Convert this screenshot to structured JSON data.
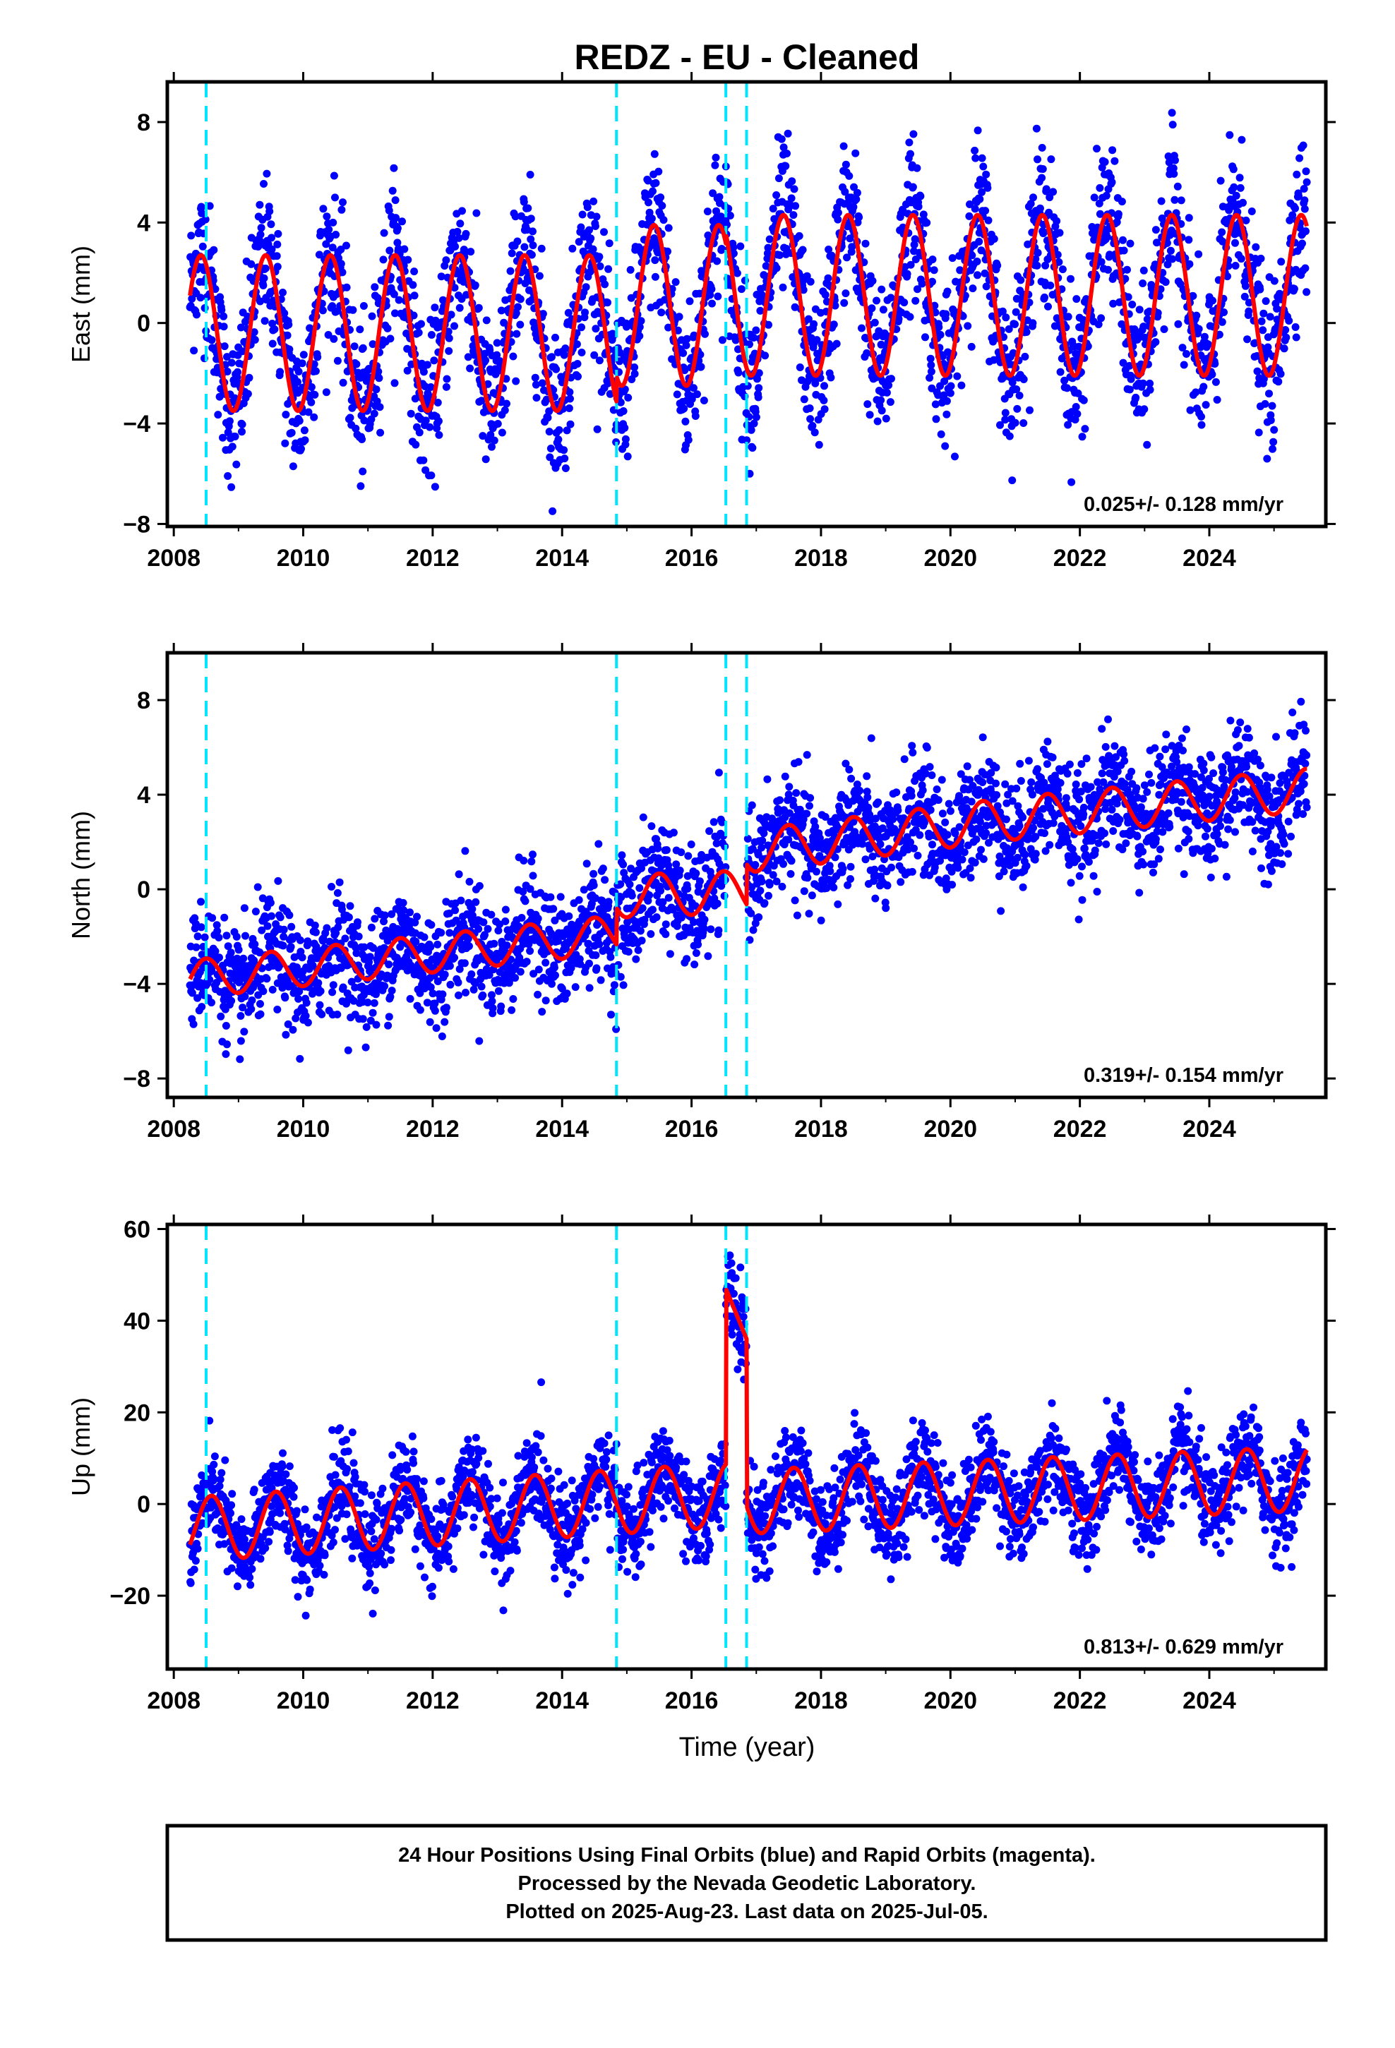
{
  "title": "REDZ  - EU - Cleaned",
  "x_axis_label": "Time (year)",
  "footer": [
    "24 Hour Positions Using Final Orbits (blue) and Rapid Orbits (magenta).",
    "Processed by the Nevada Geodetic Laboratory.",
    "Plotted on 2025-Aug-23. Last data on 2025-Jul-05."
  ],
  "colors": {
    "data": "#0000ff",
    "model": "#ff0000",
    "events": "#00e5ff",
    "frame": "#000000"
  },
  "chart_data": [
    {
      "type": "scatter",
      "component": "east",
      "ylabel": "East (mm)",
      "rate": "0.025+/- 0.128 mm/yr",
      "xlim": [
        2007.9,
        2025.8
      ],
      "ylim": [
        -8.1,
        9.6
      ],
      "xticks": [
        2008,
        2010,
        2012,
        2014,
        2016,
        2018,
        2020,
        2022,
        2024
      ],
      "yticks": [
        -8,
        -4,
        0,
        4,
        8
      ],
      "event_lines": [
        2008.5,
        2014.84,
        2016.53,
        2016.85
      ],
      "data_range": [
        2008.25,
        2025.51
      ],
      "model": {
        "description": "annual sinusoid fit",
        "segments": [
          {
            "from": 2008.25,
            "to": 2014.84,
            "offset": -0.4,
            "amplitude": 3.1,
            "peak_phase": 0.42
          },
          {
            "from": 2014.84,
            "to": 2016.53,
            "offset": 0.7,
            "amplitude": 3.2,
            "peak_phase": 0.42
          },
          {
            "from": 2016.53,
            "to": 2025.51,
            "offset": 1.1,
            "amplitude": 3.2,
            "peak_phase": 0.42
          }
        ]
      },
      "scatter_spread": 1.5
    },
    {
      "type": "scatter",
      "component": "north",
      "ylabel": "North (mm)",
      "rate": "0.319+/- 0.154 mm/yr",
      "xlim": [
        2007.9,
        2025.8
      ],
      "ylim": [
        -8.8,
        10.0
      ],
      "xticks": [
        2008,
        2010,
        2012,
        2014,
        2016,
        2018,
        2020,
        2022,
        2024
      ],
      "yticks": [
        -8,
        -4,
        0,
        4,
        8
      ],
      "event_lines": [
        2008.5,
        2014.84,
        2016.53,
        2016.85
      ],
      "data_range": [
        2008.25,
        2025.51
      ],
      "model": {
        "description": "linear trend with offsets plus annual sinusoid",
        "segments": [
          {
            "from": 2008.25,
            "to": 2014.84,
            "start": -3.8,
            "end": -1.9,
            "amplitude": 0.8,
            "peak_phase": 0.5
          },
          {
            "from": 2014.84,
            "to": 2016.85,
            "start": -0.3,
            "end": -0.1,
            "amplitude": 0.9,
            "peak_phase": 0.5
          },
          {
            "from": 2016.85,
            "to": 2021.0,
            "start": 1.6,
            "end": 3.0,
            "amplitude": 0.9,
            "peak_phase": 0.5
          },
          {
            "from": 2021.0,
            "to": 2025.51,
            "start": 3.0,
            "end": 4.2,
            "amplitude": 0.9,
            "peak_phase": 0.5
          }
        ]
      },
      "scatter_spread": 1.2
    },
    {
      "type": "scatter",
      "component": "up",
      "ylabel": "Up (mm)",
      "rate": "0.813+/- 0.629 mm/yr",
      "xlim": [
        2007.9,
        2025.8
      ],
      "ylim": [
        -36,
        61
      ],
      "xticks": [
        2008,
        2010,
        2012,
        2014,
        2016,
        2018,
        2020,
        2022,
        2024
      ],
      "yticks": [
        -20,
        0,
        20,
        40,
        60
      ],
      "event_lines": [
        2008.5,
        2014.84,
        2016.53,
        2016.85
      ],
      "data_range": [
        2008.25,
        2025.51
      ],
      "model": {
        "description": "trend plus annual sinusoid with step between events",
        "segments": [
          {
            "from": 2008.25,
            "to": 2016.53,
            "start": -5.5,
            "end": 2.0,
            "amplitude": 7.0,
            "peak_phase": 0.58
          },
          {
            "from": 2016.53,
            "to": 2016.85,
            "start": 47.0,
            "end": 36.0,
            "amplitude": 0,
            "peak_phase": 0.58
          },
          {
            "from": 2016.85,
            "to": 2025.51,
            "start": 0.5,
            "end": 5.5,
            "amplitude": 7.0,
            "peak_phase": 0.58
          }
        ]
      },
      "scatter_spread": 5.0
    }
  ]
}
